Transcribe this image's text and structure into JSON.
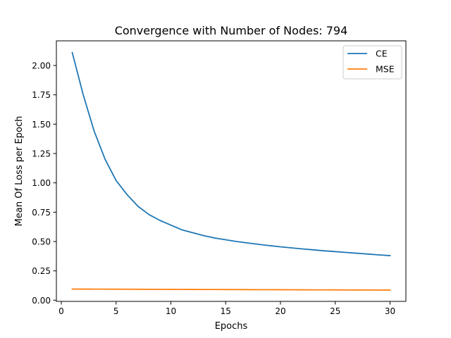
{
  "chart_data": {
    "type": "line",
    "title": "Convergence with Number of Nodes: 794",
    "xlabel": "Epochs",
    "ylabel": "Mean Of Loss per Epoch",
    "xlim": [
      -0.45,
      31.45
    ],
    "ylim": [
      -0.01,
      2.21
    ],
    "xticks": [
      0,
      5,
      10,
      15,
      20,
      25,
      30
    ],
    "xtick_labels": [
      "0",
      "5",
      "10",
      "15",
      "20",
      "25",
      "30"
    ],
    "yticks": [
      0.0,
      0.25,
      0.5,
      0.75,
      1.0,
      1.25,
      1.5,
      1.75,
      2.0
    ],
    "ytick_labels": [
      "0.00",
      "0.25",
      "0.50",
      "0.75",
      "1.00",
      "1.25",
      "1.50",
      "1.75",
      "2.00"
    ],
    "grid": false,
    "legend_position": "top-right",
    "x": [
      1,
      2,
      3,
      4,
      5,
      6,
      7,
      8,
      9,
      10,
      11,
      12,
      13,
      14,
      15,
      16,
      17,
      18,
      19,
      20,
      21,
      22,
      23,
      24,
      25,
      26,
      27,
      28,
      29,
      30
    ],
    "series": [
      {
        "name": "CE",
        "color": "#1f77b4",
        "values": [
          2.11,
          1.75,
          1.44,
          1.2,
          1.02,
          0.9,
          0.8,
          0.73,
          0.68,
          0.64,
          0.6,
          0.575,
          0.55,
          0.53,
          0.515,
          0.5,
          0.488,
          0.476,
          0.465,
          0.455,
          0.446,
          0.437,
          0.429,
          0.421,
          0.414,
          0.407,
          0.4,
          0.393,
          0.386,
          0.38
        ]
      },
      {
        "name": "MSE",
        "color": "#ff7f0e",
        "values": [
          0.095,
          0.0947,
          0.0944,
          0.0941,
          0.0938,
          0.0935,
          0.0932,
          0.0929,
          0.0926,
          0.0923,
          0.092,
          0.0917,
          0.0914,
          0.0911,
          0.0908,
          0.0905,
          0.0902,
          0.0899,
          0.0896,
          0.0893,
          0.089,
          0.0887,
          0.0884,
          0.0881,
          0.0878,
          0.0875,
          0.0872,
          0.0869,
          0.0866,
          0.0863
        ]
      }
    ]
  }
}
